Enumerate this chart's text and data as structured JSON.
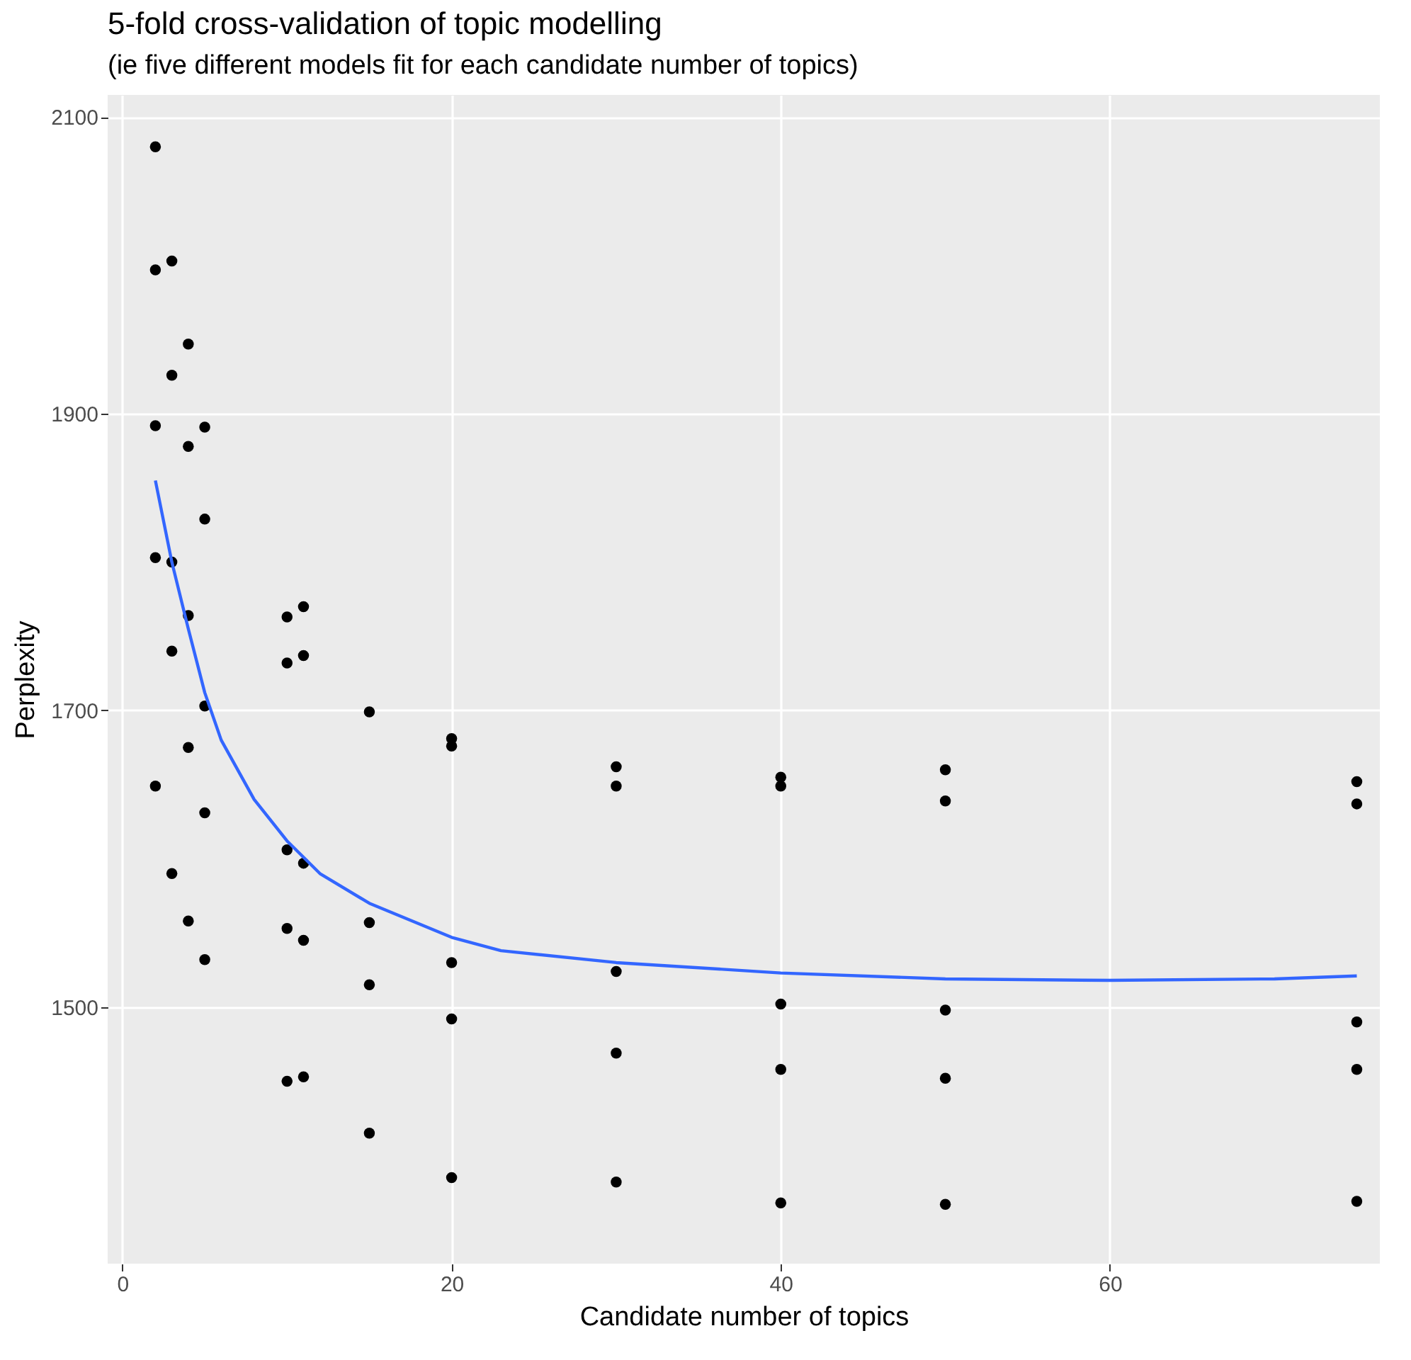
{
  "chart_data": {
    "type": "scatter",
    "title": "5-fold cross-validation of topic modelling",
    "subtitle": "(ie five different models fit for each candidate number of topics)",
    "xlabel": "Candidate number of topics",
    "ylabel": "Perplexity",
    "xlim": [
      -0.9,
      76.4
    ],
    "ylim": [
      1327,
      2115
    ],
    "xticks": [
      0,
      20,
      40,
      60
    ],
    "yticks": [
      1500,
      1700,
      1900,
      2100
    ],
    "grid": true,
    "series": [
      {
        "marker": "circle",
        "color": "#000000",
        "x": [
          2,
          2,
          2,
          2,
          2,
          3,
          3,
          3,
          3,
          3,
          4,
          4,
          4,
          4,
          4,
          5,
          5,
          5,
          5,
          5,
          10,
          10,
          10,
          10,
          10,
          11,
          11,
          11,
          11,
          11,
          15,
          15,
          15,
          15,
          20,
          20,
          20,
          20,
          20,
          30,
          30,
          30,
          30,
          30,
          40,
          40,
          40,
          40,
          40,
          50,
          50,
          50,
          50,
          50,
          75,
          75,
          75,
          75,
          75
        ],
        "values": [
          2080,
          1997,
          1892,
          1803,
          1649,
          2003,
          1926,
          1800,
          1740,
          1590,
          1947,
          1878,
          1764,
          1675,
          1558,
          1891,
          1829,
          1703,
          1631,
          1532,
          1763,
          1732,
          1606,
          1553,
          1450,
          1770,
          1737,
          1597,
          1545,
          1453,
          1699,
          1557,
          1515,
          1415,
          1681,
          1676,
          1530,
          1492,
          1385,
          1662,
          1649,
          1524,
          1469,
          1382,
          1655,
          1649,
          1502,
          1458,
          1368,
          1660,
          1639,
          1498,
          1452,
          1367,
          1652,
          1637,
          1490,
          1458,
          1369
        ]
      },
      {
        "type": "line",
        "marker": "none",
        "color": "#3366ff",
        "x": [
          2,
          3,
          4,
          5,
          6,
          8,
          10,
          12,
          15,
          20,
          23,
          30,
          40,
          50,
          60,
          70,
          75
        ],
        "values": [
          1855,
          1800,
          1755,
          1712,
          1680,
          1640,
          1612,
          1590,
          1570,
          1547,
          1538,
          1530,
          1523,
          1519,
          1518,
          1519,
          1521
        ]
      }
    ]
  }
}
